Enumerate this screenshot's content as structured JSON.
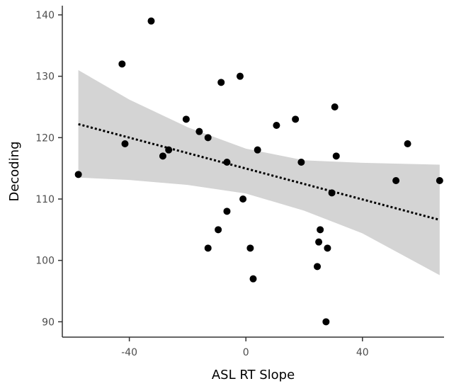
{
  "chart_data": {
    "type": "scatter",
    "xlabel": "ASL RT Slope",
    "ylabel": "Decoding",
    "xlim": [
      -63,
      68
    ],
    "ylim": [
      87.5,
      141.5
    ],
    "xticks": [
      -40,
      0,
      40
    ],
    "xtick_labels": [
      "-40",
      "0",
      "40"
    ],
    "yticks": [
      90,
      100,
      110,
      120,
      130,
      140
    ],
    "ytick_labels": [
      "90",
      "100",
      "110",
      "120",
      "130",
      "140"
    ],
    "grid": false,
    "points": [
      {
        "x": -57.5,
        "y": 114
      },
      {
        "x": -42.5,
        "y": 132
      },
      {
        "x": -41.5,
        "y": 119
      },
      {
        "x": -32.5,
        "y": 139
      },
      {
        "x": -28.5,
        "y": 117
      },
      {
        "x": -26.5,
        "y": 118
      },
      {
        "x": -20.5,
        "y": 123
      },
      {
        "x": -16,
        "y": 121
      },
      {
        "x": -13,
        "y": 120
      },
      {
        "x": -13,
        "y": 102
      },
      {
        "x": -9.5,
        "y": 105
      },
      {
        "x": -8.5,
        "y": 129
      },
      {
        "x": -6.5,
        "y": 116
      },
      {
        "x": -6.5,
        "y": 108
      },
      {
        "x": -2,
        "y": 130
      },
      {
        "x": -1,
        "y": 110
      },
      {
        "x": 1.5,
        "y": 102
      },
      {
        "x": 2.5,
        "y": 97
      },
      {
        "x": 4,
        "y": 118
      },
      {
        "x": 10.5,
        "y": 122
      },
      {
        "x": 17,
        "y": 123
      },
      {
        "x": 19,
        "y": 116
      },
      {
        "x": 24.5,
        "y": 99
      },
      {
        "x": 25,
        "y": 103
      },
      {
        "x": 25.5,
        "y": 105
      },
      {
        "x": 27.5,
        "y": 90
      },
      {
        "x": 28,
        "y": 102
      },
      {
        "x": 29.5,
        "y": 111
      },
      {
        "x": 30.5,
        "y": 125
      },
      {
        "x": 31,
        "y": 117
      },
      {
        "x": 51.5,
        "y": 113
      },
      {
        "x": 55.5,
        "y": 119
      },
      {
        "x": 66.5,
        "y": 113
      }
    ],
    "trend_line": {
      "style": "dotted",
      "x": [
        -57.5,
        66.5
      ],
      "y": [
        122.2,
        106.6
      ]
    },
    "confidence_band": {
      "x": [
        -57.5,
        -40,
        -20,
        0,
        20,
        40,
        66.5
      ],
      "upper": [
        131,
        126.2,
        121.7,
        118.2,
        116.3,
        115.9,
        115.6
      ],
      "lower": [
        113.5,
        113.1,
        112.3,
        110.9,
        108.1,
        104.4,
        97.6
      ]
    },
    "colors": {
      "points": "#000000",
      "band": "#d4d4d4",
      "line": "#000000",
      "axis": "#333333"
    }
  }
}
